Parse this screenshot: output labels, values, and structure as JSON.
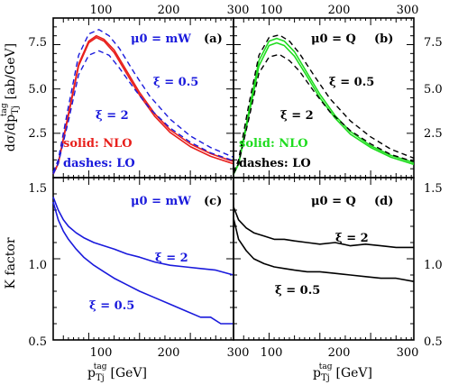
{
  "figure": {
    "top_x_ticks": [
      "100",
      "200",
      "300"
    ],
    "bottom_x_ticks": [
      "100",
      "200",
      "300"
    ],
    "x_label": "p",
    "x_label_sub": "Tj",
    "x_label_sup": "tag",
    "x_label_unit": "[GeV]",
    "y_label_top": "dσ/dp",
    "y_label_top_sub": "Tj",
    "y_label_top_sup": "tag",
    "y_label_top_unit": "[ab/GeV]",
    "y_label_bottom": "K factor",
    "y_ticks_top": [
      "2.5",
      "5.0",
      "7.5"
    ],
    "y_ticks_bottom": [
      "0.5",
      "1.0",
      "1.5"
    ]
  },
  "colors": {
    "red": "#e8201c",
    "blue": "#1a1adc",
    "green": "#1fdc1f",
    "black": "#000000"
  },
  "chart_data": [
    {
      "panel": "a",
      "type": "line",
      "annotations": {
        "panel_tag": "(a)",
        "scale": "μ0 = mW",
        "xi_low": "ξ = 0.5",
        "xi_high": "ξ = 2",
        "solid_label": "solid: NLO",
        "dash_label": "dashes: LO"
      },
      "xlim": [
        30,
        385
      ],
      "ylim": [
        0,
        9.0
      ],
      "series": [
        {
          "style": "solid",
          "color": "red",
          "x": [
            30,
            40,
            60,
            80,
            100,
            115,
            130,
            150,
            175,
            200,
            230,
            260,
            300,
            340,
            385
          ],
          "y": [
            0.2,
            0.8,
            3.6,
            6.4,
            7.7,
            8.0,
            7.8,
            7.2,
            6.0,
            4.8,
            3.6,
            2.7,
            1.9,
            1.35,
            0.9
          ]
        },
        {
          "style": "solid",
          "color": "red",
          "x": [
            30,
            40,
            60,
            80,
            100,
            115,
            130,
            150,
            175,
            200,
            230,
            260,
            300,
            340,
            385
          ],
          "y": [
            0.2,
            0.8,
            3.5,
            6.3,
            7.6,
            7.9,
            7.7,
            7.05,
            5.85,
            4.65,
            3.45,
            2.55,
            1.75,
            1.2,
            0.78
          ]
        },
        {
          "style": "dashed",
          "color": "blue",
          "x": [
            30,
            40,
            60,
            80,
            100,
            120,
            140,
            160,
            190,
            220,
            260,
            300,
            340,
            385
          ],
          "y": [
            0.3,
            1.0,
            4.0,
            6.9,
            8.1,
            8.35,
            8.0,
            7.3,
            5.9,
            4.6,
            3.3,
            2.35,
            1.7,
            1.15
          ]
        },
        {
          "style": "dashed",
          "color": "blue",
          "x": [
            30,
            40,
            60,
            80,
            100,
            120,
            140,
            160,
            190,
            220,
            260,
            300,
            340,
            385
          ],
          "y": [
            0.2,
            0.8,
            3.2,
            5.8,
            6.9,
            7.15,
            6.9,
            6.2,
            5.0,
            3.9,
            2.8,
            2.0,
            1.4,
            0.95
          ]
        }
      ]
    },
    {
      "panel": "b",
      "type": "line",
      "annotations": {
        "panel_tag": "(b)",
        "scale": "μ0 = Q",
        "xi_low": "ξ = 0.5",
        "xi_high": "ξ = 2",
        "solid_label": "solid: NLO",
        "dash_label": "dashes: LO"
      },
      "xlim": [
        30,
        385
      ],
      "ylim": [
        0,
        9.0
      ],
      "series": [
        {
          "style": "solid",
          "color": "green",
          "x": [
            30,
            40,
            60,
            80,
            100,
            115,
            130,
            150,
            175,
            200,
            230,
            260,
            300,
            340,
            385
          ],
          "y": [
            0.2,
            0.8,
            3.7,
            6.6,
            7.7,
            7.85,
            7.7,
            7.1,
            5.9,
            4.7,
            3.5,
            2.6,
            1.8,
            1.25,
            0.85
          ]
        },
        {
          "style": "solid",
          "color": "green",
          "x": [
            30,
            40,
            60,
            80,
            100,
            115,
            130,
            150,
            175,
            200,
            230,
            260,
            300,
            340,
            385
          ],
          "y": [
            0.2,
            0.75,
            3.5,
            6.3,
            7.45,
            7.6,
            7.45,
            6.85,
            5.7,
            4.5,
            3.35,
            2.45,
            1.7,
            1.15,
            0.75
          ]
        },
        {
          "style": "dashed",
          "color": "black",
          "x": [
            30,
            40,
            60,
            80,
            100,
            120,
            140,
            160,
            190,
            220,
            260,
            300,
            340,
            385
          ],
          "y": [
            0.3,
            1.0,
            4.1,
            6.9,
            7.9,
            8.05,
            7.7,
            7.0,
            5.7,
            4.45,
            3.2,
            2.3,
            1.6,
            1.1
          ]
        },
        {
          "style": "dashed",
          "color": "black",
          "x": [
            30,
            40,
            60,
            80,
            100,
            120,
            140,
            160,
            190,
            220,
            260,
            300,
            340,
            385
          ],
          "y": [
            0.2,
            0.8,
            3.3,
            5.9,
            6.8,
            6.95,
            6.6,
            6.0,
            4.8,
            3.7,
            2.65,
            1.9,
            1.3,
            0.9
          ]
        }
      ]
    },
    {
      "panel": "c",
      "type": "line",
      "annotations": {
        "panel_tag": "(c)",
        "scale": "μ0 = mW",
        "xi_high": "ξ = 2",
        "xi_low": "ξ = 0.5"
      },
      "xlim": [
        30,
        385
      ],
      "ylim": [
        0.5,
        1.5
      ],
      "series": [
        {
          "style": "solid",
          "color": "blue",
          "name": "ξ = 2",
          "x": [
            30,
            40,
            50,
            60,
            75,
            90,
            110,
            130,
            150,
            175,
            200,
            230,
            260,
            290,
            320,
            350,
            385
          ],
          "y": [
            1.38,
            1.3,
            1.24,
            1.2,
            1.16,
            1.13,
            1.1,
            1.08,
            1.06,
            1.03,
            1.01,
            0.98,
            0.96,
            0.95,
            0.94,
            0.93,
            0.9
          ]
        },
        {
          "style": "solid",
          "color": "blue",
          "name": "ξ = 0.5",
          "x": [
            30,
            40,
            50,
            60,
            75,
            90,
            110,
            130,
            150,
            175,
            200,
            230,
            260,
            290,
            320,
            340,
            360,
            385
          ],
          "y": [
            1.35,
            1.24,
            1.17,
            1.12,
            1.06,
            1.01,
            0.96,
            0.92,
            0.88,
            0.84,
            0.8,
            0.76,
            0.72,
            0.68,
            0.64,
            0.64,
            0.6,
            0.6
          ]
        }
      ]
    },
    {
      "panel": "d",
      "type": "line",
      "annotations": {
        "panel_tag": "(d)",
        "scale": "μ0 = Q",
        "xi_high": "ξ = 2",
        "xi_low": "ξ = 0.5"
      },
      "xlim": [
        30,
        385
      ],
      "ylim": [
        0.5,
        1.5
      ],
      "series": [
        {
          "style": "solid",
          "color": "black",
          "name": "ξ = 2",
          "x": [
            30,
            40,
            55,
            70,
            90,
            110,
            130,
            150,
            175,
            200,
            230,
            260,
            290,
            320,
            350,
            385
          ],
          "y": [
            1.32,
            1.24,
            1.19,
            1.16,
            1.14,
            1.12,
            1.12,
            1.11,
            1.1,
            1.09,
            1.1,
            1.08,
            1.09,
            1.08,
            1.07,
            1.07
          ]
        },
        {
          "style": "solid",
          "color": "black",
          "name": "ξ = 0.5",
          "x": [
            30,
            40,
            55,
            70,
            90,
            110,
            130,
            150,
            175,
            200,
            230,
            260,
            290,
            320,
            350,
            385
          ],
          "y": [
            1.25,
            1.12,
            1.05,
            1.0,
            0.97,
            0.95,
            0.94,
            0.93,
            0.92,
            0.92,
            0.91,
            0.9,
            0.89,
            0.88,
            0.88,
            0.86
          ]
        }
      ]
    }
  ]
}
